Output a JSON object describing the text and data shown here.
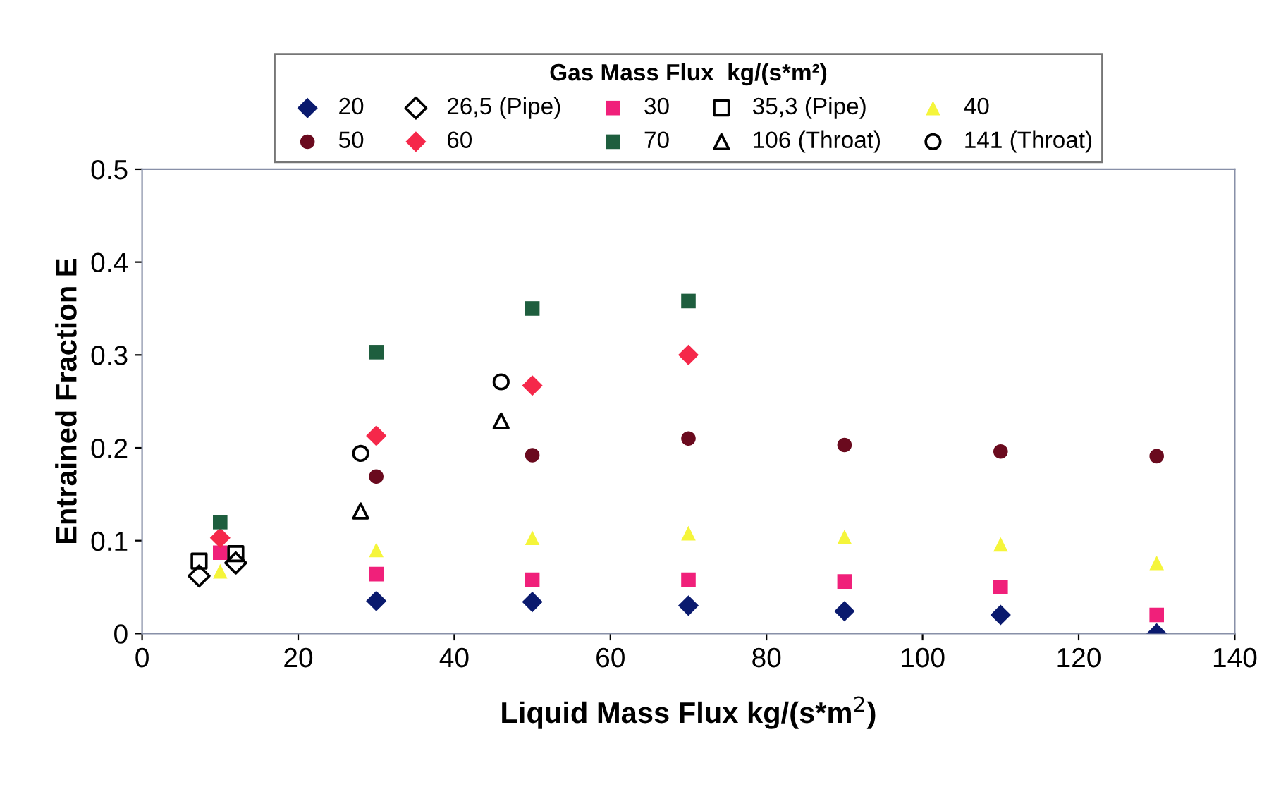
{
  "chart_data": {
    "type": "scatter",
    "xlabel": "Liquid Mass Flux kg/(s*m$^{2}$)",
    "ylabel": "Entrained Fraction E",
    "legend_title": "Gas Mass Flux  kg/(s*m²)",
    "legend": "top",
    "grid": false,
    "xlim": [
      0,
      140
    ],
    "xticks": [
      0,
      20,
      40,
      60,
      80,
      100,
      120,
      140
    ],
    "ylim": [
      0,
      0.5
    ],
    "yticks": [
      0,
      0.1,
      0.2,
      0.3,
      0.4,
      0.5
    ],
    "series": [
      {
        "name": "20",
        "color": "#0a1a6e",
        "marker": "diamond",
        "x": [
          30,
          50,
          70,
          90,
          110,
          130
        ],
        "values": [
          0.035,
          0.034,
          0.03,
          0.024,
          0.02,
          0
        ]
      },
      {
        "name": "26,5 (Pipe)",
        "color": "#000000",
        "marker": "diamond",
        "x": [
          7.3,
          12
        ],
        "values": [
          0.062,
          0.076
        ]
      },
      {
        "name": "30",
        "color": "#f0207a",
        "marker": "square",
        "x": [
          10,
          30,
          50,
          70,
          90,
          110,
          130
        ],
        "values": [
          0.087,
          0.064,
          0.058,
          0.058,
          0.056,
          0.05,
          0.02
        ]
      },
      {
        "name": "35,3 (Pipe)",
        "color": "#000000",
        "marker": "square",
        "x": [
          7.3,
          12
        ],
        "values": [
          0.078,
          0.086
        ]
      },
      {
        "name": "40",
        "color": "#f5f53a",
        "marker": "triangle",
        "x": [
          10,
          30,
          50,
          70,
          90,
          110,
          130
        ],
        "values": [
          0.067,
          0.09,
          0.103,
          0.108,
          0.104,
          0.096,
          0.076
        ]
      },
      {
        "name": "50",
        "color": "#6a0a1e",
        "marker": "circle",
        "x": [
          30,
          50,
          70,
          90,
          110,
          130
        ],
        "values": [
          0.169,
          0.192,
          0.21,
          0.203,
          0.196,
          0.191
        ]
      },
      {
        "name": "60",
        "color": "#f5284a",
        "marker": "diamond",
        "x": [
          10,
          30,
          50,
          70
        ],
        "values": [
          0.103,
          0.213,
          0.267,
          0.3
        ]
      },
      {
        "name": "70",
        "color": "#1e5e3e",
        "marker": "square",
        "x": [
          10,
          30,
          50,
          70
        ],
        "values": [
          0.12,
          0.303,
          0.35,
          0.358
        ]
      },
      {
        "name": "106 (Throat)",
        "color": "#000000",
        "marker": "triangle",
        "x": [
          28,
          46
        ],
        "values": [
          0.132,
          0.229
        ]
      },
      {
        "name": "141 (Throat)",
        "color": "#000000",
        "marker": "circle",
        "x": [
          28,
          46
        ],
        "values": [
          0.194,
          0.271
        ]
      }
    ]
  }
}
